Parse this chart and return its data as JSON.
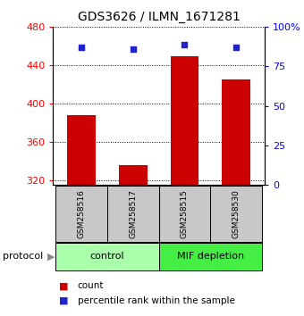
{
  "title": "GDS3626 / ILMN_1671281",
  "samples": [
    "GSM258516",
    "GSM258517",
    "GSM258515",
    "GSM258530"
  ],
  "counts": [
    388,
    336,
    449,
    425
  ],
  "percentile_ranks": [
    87,
    86,
    89,
    87
  ],
  "ylim_left": [
    315,
    480
  ],
  "ylim_right": [
    0,
    100
  ],
  "yticks_left": [
    320,
    360,
    400,
    440,
    480
  ],
  "yticks_right": [
    0,
    25,
    50,
    75,
    100
  ],
  "ytick_right_labels": [
    "0",
    "25",
    "50",
    "75",
    "100%"
  ],
  "bar_color": "#cc0000",
  "dot_color": "#2222cc",
  "groups": [
    {
      "label": "control",
      "samples": [
        0,
        1
      ],
      "color": "#aaffaa"
    },
    {
      "label": "MIF depletion",
      "samples": [
        2,
        3
      ],
      "color": "#44ee44"
    }
  ],
  "protocol_label": "protocol",
  "legend_bar_label": "count",
  "legend_dot_label": "percentile rank within the sample",
  "title_fontsize": 10,
  "tick_fontsize": 8,
  "label_fontsize": 7.5
}
